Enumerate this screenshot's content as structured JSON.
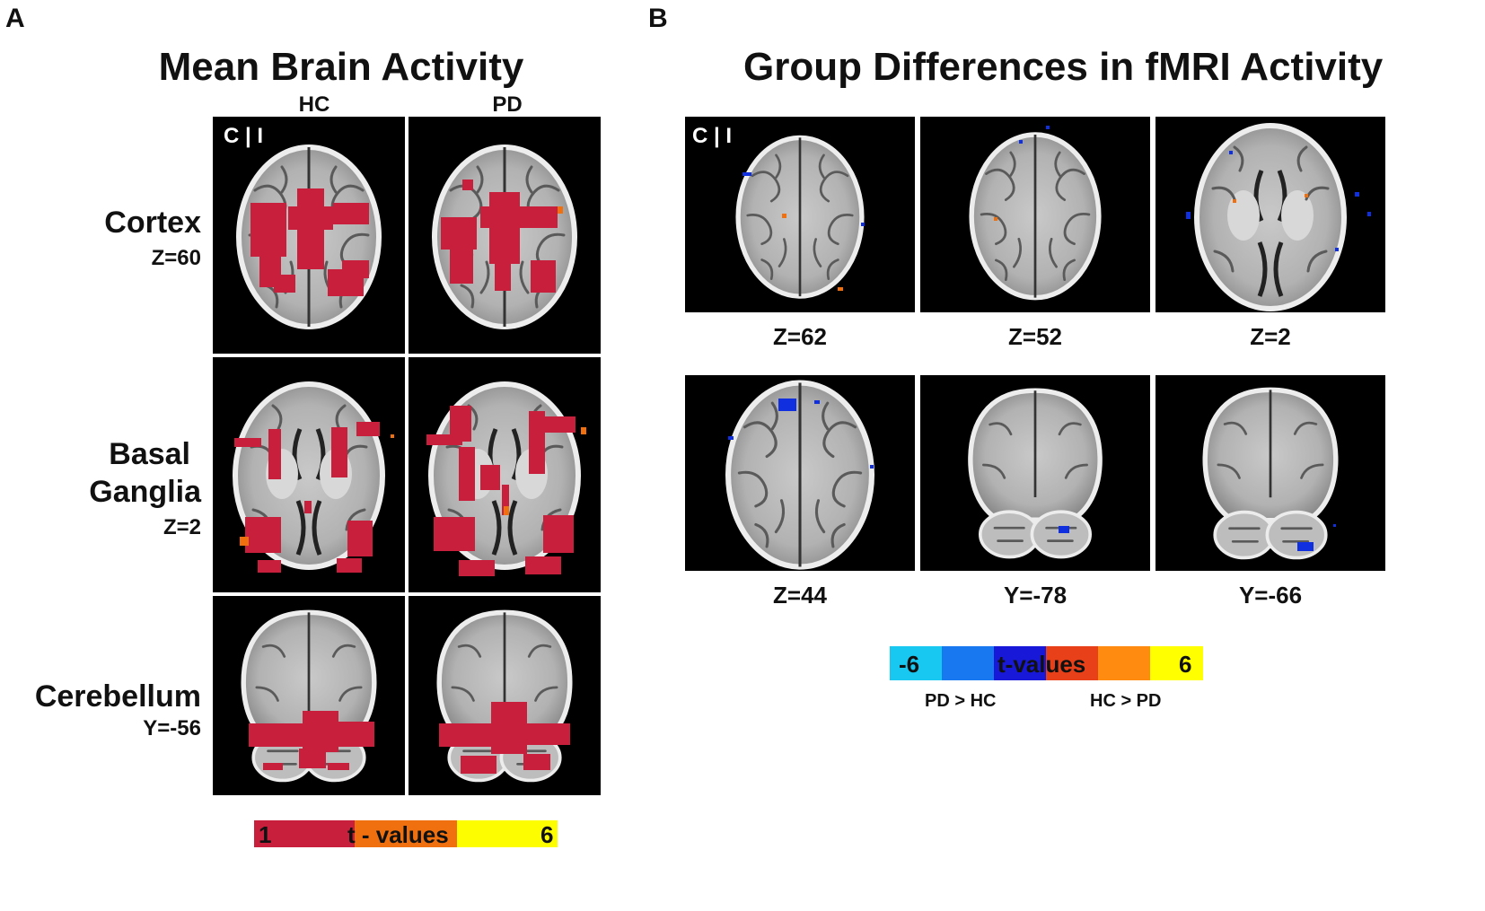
{
  "panel_a": {
    "letter": "A",
    "title": "Mean Brain Activity",
    "columns": [
      "HC",
      "PD"
    ],
    "orientation_label": "C | I",
    "rows": [
      {
        "name_lines": [
          "Cortex"
        ],
        "coord": "Z=60"
      },
      {
        "name_lines": [
          "Basal",
          "Ganglia"
        ],
        "coord": "Z=2"
      },
      {
        "name_lines": [
          "Cerebellum"
        ],
        "coord": "Y=-56"
      }
    ],
    "colorbar": {
      "min_label": "1",
      "mid_label": "t - values",
      "max_label": "6",
      "colors": [
        "#c8203c",
        "#f07010",
        "#fdfd00"
      ]
    }
  },
  "panel_b": {
    "letter": "B",
    "title": "Group Differences in fMRI Activity",
    "orientation_label": "C | I",
    "slices": [
      "Z=62",
      "Z=52",
      "Z=2",
      "Z=44",
      "Y=-78",
      "Y=-66"
    ],
    "colorbar": {
      "min_label": "-6",
      "mid_label": "t-values",
      "max_label": "6",
      "left_caption": "PD > HC",
      "right_caption": "HC > PD",
      "colors": [
        "#18c8f0",
        "#1878f0",
        "#1818d8",
        "#e84018",
        "#ff8c10",
        "#ffff00"
      ]
    }
  },
  "colors": {
    "background": "#000000",
    "activation_red": "#c8203c",
    "activation_orange": "#f07010",
    "activation_blue": "#1030e0"
  }
}
